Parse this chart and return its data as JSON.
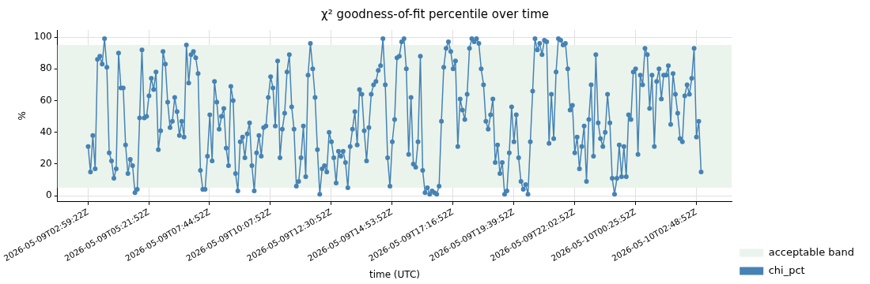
{
  "chart_data": {
    "type": "line",
    "title": "χ² goodness-of-fit percentile over time",
    "xlabel": "time (UTC)",
    "ylabel": "%",
    "xlim": [
      "2026-05-09T01:47:19",
      "2026-05-10T04:12:25"
    ],
    "xticks": [
      {
        "value": "2026-05-09T02:59:22",
        "label": "2026-05-09T02:59:22Z"
      },
      {
        "value": "2026-05-09T05:21:52",
        "label": "2026-05-09T05:21:52Z"
      },
      {
        "value": "2026-05-09T07:44:52",
        "label": "2026-05-09T07:44:52Z"
      },
      {
        "value": "2026-05-09T10:07:52",
        "label": "2026-05-09T10:07:52Z"
      },
      {
        "value": "2026-05-09T12:30:52",
        "label": "2026-05-09T12:30:52Z"
      },
      {
        "value": "2026-05-09T14:53:52",
        "label": "2026-05-09T14:53:52Z"
      },
      {
        "value": "2026-05-09T17:16:52",
        "label": "2026-05-09T17:16:52Z"
      },
      {
        "value": "2026-05-09T19:39:52",
        "label": "2026-05-09T19:39:52Z"
      },
      {
        "value": "2026-05-09T22:02:52",
        "label": "2026-05-09T22:02:52Z"
      },
      {
        "value": "2026-05-10T00:25:52",
        "label": "2026-05-10T00:25:52Z"
      },
      {
        "value": "2026-05-10T02:48:52",
        "label": "2026-05-10T02:48:52Z"
      }
    ],
    "ylim": [
      -3.8,
      104.5
    ],
    "yticks": [
      0,
      20,
      40,
      60,
      80,
      100
    ],
    "grid": true,
    "legend": "bottom right",
    "marker": "circle",
    "line_style": "solid",
    "bands": [
      {
        "axis": "y",
        "from": 5,
        "to": 95,
        "label": "acceptable band",
        "color": "#eaf4ec"
      }
    ],
    "x": [
      "2026-05-09T02:59:22",
      "2026-05-09T03:04:52",
      "2026-05-09T03:10:22",
      "2026-05-09T03:15:52",
      "2026-05-09T03:21:22",
      "2026-05-09T03:26:52",
      "2026-05-09T03:32:22",
      "2026-05-09T03:37:52",
      "2026-05-09T03:43:22",
      "2026-05-09T03:48:52",
      "2026-05-09T03:54:22",
      "2026-05-09T03:59:52",
      "2026-05-09T04:05:22",
      "2026-05-09T04:10:52",
      "2026-05-09T04:16:22",
      "2026-05-09T04:21:52",
      "2026-05-09T04:27:22",
      "2026-05-09T04:32:52",
      "2026-05-09T04:38:22",
      "2026-05-09T04:43:52",
      "2026-05-09T04:49:22",
      "2026-05-09T04:54:52",
      "2026-05-09T05:00:22",
      "2026-05-09T05:05:52",
      "2026-05-09T05:11:22",
      "2026-05-09T05:16:52",
      "2026-05-09T05:22:22",
      "2026-05-09T05:27:52",
      "2026-05-09T05:33:22",
      "2026-05-09T05:38:52",
      "2026-05-09T05:44:22",
      "2026-05-09T05:49:52",
      "2026-05-09T05:55:22",
      "2026-05-09T06:00:52",
      "2026-05-09T06:06:22",
      "2026-05-09T06:11:52",
      "2026-05-09T06:17:22",
      "2026-05-09T06:22:52",
      "2026-05-09T06:28:22",
      "2026-05-09T06:33:52",
      "2026-05-09T06:39:22",
      "2026-05-09T06:44:52",
      "2026-05-09T06:50:22",
      "2026-05-09T06:55:52",
      "2026-05-09T07:01:22",
      "2026-05-09T07:06:52",
      "2026-05-09T07:12:22",
      "2026-05-09T07:17:52",
      "2026-05-09T07:23:22",
      "2026-05-09T07:28:52",
      "2026-05-09T07:34:22",
      "2026-05-09T07:39:52",
      "2026-05-09T07:45:22",
      "2026-05-09T07:50:52",
      "2026-05-09T07:56:22",
      "2026-05-09T08:01:52",
      "2026-05-09T08:07:22",
      "2026-05-09T08:12:52",
      "2026-05-09T08:18:22",
      "2026-05-09T08:23:52",
      "2026-05-09T08:29:22",
      "2026-05-09T08:34:52",
      "2026-05-09T08:40:22",
      "2026-05-09T08:45:52",
      "2026-05-09T08:51:22",
      "2026-05-09T08:56:52",
      "2026-05-09T09:02:22",
      "2026-05-09T09:07:52",
      "2026-05-09T09:13:22",
      "2026-05-09T09:18:52",
      "2026-05-09T09:24:22",
      "2026-05-09T09:29:52",
      "2026-05-09T09:35:22",
      "2026-05-09T09:40:52",
      "2026-05-09T09:46:22",
      "2026-05-09T09:51:52",
      "2026-05-09T09:57:22",
      "2026-05-09T10:02:52",
      "2026-05-09T10:08:22",
      "2026-05-09T10:13:52",
      "2026-05-09T10:19:22",
      "2026-05-09T10:24:52",
      "2026-05-09T10:30:22",
      "2026-05-09T10:35:52",
      "2026-05-09T10:41:22",
      "2026-05-09T10:46:52",
      "2026-05-09T10:52:22",
      "2026-05-09T10:57:52",
      "2026-05-09T11:03:22",
      "2026-05-09T11:08:52",
      "2026-05-09T11:14:22",
      "2026-05-09T11:19:52",
      "2026-05-09T11:25:22",
      "2026-05-09T11:30:52",
      "2026-05-09T11:36:22",
      "2026-05-09T11:41:52",
      "2026-05-09T11:47:22",
      "2026-05-09T11:52:52",
      "2026-05-09T11:58:22",
      "2026-05-09T12:03:52",
      "2026-05-09T12:09:22",
      "2026-05-09T12:14:52",
      "2026-05-09T12:20:22",
      "2026-05-09T12:25:52",
      "2026-05-09T12:31:22",
      "2026-05-09T12:36:52",
      "2026-05-09T12:42:22",
      "2026-05-09T12:47:52",
      "2026-05-09T12:53:22",
      "2026-05-09T12:58:52",
      "2026-05-09T13:04:22",
      "2026-05-09T13:09:52",
      "2026-05-09T13:15:22",
      "2026-05-09T13:20:52",
      "2026-05-09T13:26:22",
      "2026-05-09T13:31:52",
      "2026-05-09T13:37:22",
      "2026-05-09T13:42:52",
      "2026-05-09T13:48:22",
      "2026-05-09T13:53:52",
      "2026-05-09T13:59:22",
      "2026-05-09T14:04:52",
      "2026-05-09T14:10:22",
      "2026-05-09T14:15:52",
      "2026-05-09T14:21:22",
      "2026-05-09T14:26:52",
      "2026-05-09T14:32:22",
      "2026-05-09T14:37:52",
      "2026-05-09T14:43:22",
      "2026-05-09T14:48:52",
      "2026-05-09T14:54:22",
      "2026-05-09T14:59:52",
      "2026-05-09T15:05:22",
      "2026-05-09T15:10:52",
      "2026-05-09T15:16:22",
      "2026-05-09T15:21:52",
      "2026-05-09T15:27:22",
      "2026-05-09T15:32:52",
      "2026-05-09T15:38:22",
      "2026-05-09T15:43:52",
      "2026-05-09T15:49:22",
      "2026-05-09T15:54:52",
      "2026-05-09T16:00:22",
      "2026-05-09T16:05:52",
      "2026-05-09T16:11:22",
      "2026-05-09T16:16:52",
      "2026-05-09T16:22:22",
      "2026-05-09T16:27:52",
      "2026-05-09T16:33:22",
      "2026-05-09T16:38:52",
      "2026-05-09T16:44:22",
      "2026-05-09T16:49:52",
      "2026-05-09T16:55:22",
      "2026-05-09T17:00:52",
      "2026-05-09T17:06:22",
      "2026-05-09T17:11:52",
      "2026-05-09T17:17:22",
      "2026-05-09T17:22:52",
      "2026-05-09T17:28:22",
      "2026-05-09T17:33:52",
      "2026-05-09T17:39:22",
      "2026-05-09T17:44:52",
      "2026-05-09T17:50:22",
      "2026-05-09T17:55:52",
      "2026-05-09T18:01:22",
      "2026-05-09T18:06:52",
      "2026-05-09T18:12:22",
      "2026-05-09T18:17:52",
      "2026-05-09T18:23:22",
      "2026-05-09T18:28:52",
      "2026-05-09T18:34:22",
      "2026-05-09T18:39:52",
      "2026-05-09T18:45:22",
      "2026-05-09T18:50:52",
      "2026-05-09T18:56:22",
      "2026-05-09T19:01:52",
      "2026-05-09T19:07:22",
      "2026-05-09T19:12:52",
      "2026-05-09T19:18:22",
      "2026-05-09T19:23:52",
      "2026-05-09T19:29:22",
      "2026-05-09T19:34:52",
      "2026-05-09T19:40:22",
      "2026-05-09T19:45:52",
      "2026-05-09T19:51:22",
      "2026-05-09T19:56:52",
      "2026-05-09T20:02:22",
      "2026-05-09T20:07:52",
      "2026-05-09T20:13:22",
      "2026-05-09T20:18:52",
      "2026-05-09T20:24:22",
      "2026-05-09T20:29:52",
      "2026-05-09T20:35:22",
      "2026-05-09T20:40:52",
      "2026-05-09T20:46:22",
      "2026-05-09T20:51:52",
      "2026-05-09T20:57:22",
      "2026-05-09T21:02:52",
      "2026-05-09T21:08:22",
      "2026-05-09T21:13:52",
      "2026-05-09T21:19:22",
      "2026-05-09T21:24:52",
      "2026-05-09T21:30:22",
      "2026-05-09T21:35:52",
      "2026-05-09T21:41:22",
      "2026-05-09T21:46:52",
      "2026-05-09T21:52:22",
      "2026-05-09T21:57:52",
      "2026-05-09T22:03:22",
      "2026-05-09T22:08:52",
      "2026-05-09T22:14:22",
      "2026-05-09T22:19:52",
      "2026-05-09T22:25:22",
      "2026-05-09T22:30:52",
      "2026-05-09T22:36:22",
      "2026-05-09T22:41:52",
      "2026-05-09T22:47:22",
      "2026-05-09T22:52:52",
      "2026-05-09T22:58:22",
      "2026-05-09T23:03:52",
      "2026-05-09T23:09:22",
      "2026-05-09T23:14:52",
      "2026-05-09T23:20:22",
      "2026-05-09T23:25:52",
      "2026-05-09T23:31:22",
      "2026-05-09T23:36:52",
      "2026-05-09T23:42:22",
      "2026-05-09T23:47:52",
      "2026-05-09T23:53:22",
      "2026-05-09T23:58:52",
      "2026-05-10T00:04:22",
      "2026-05-10T00:09:52",
      "2026-05-10T00:15:22",
      "2026-05-10T00:20:52",
      "2026-05-10T00:26:22",
      "2026-05-10T00:31:52",
      "2026-05-10T00:37:22",
      "2026-05-10T00:42:52",
      "2026-05-10T00:48:22",
      "2026-05-10T00:53:52",
      "2026-05-10T00:59:22",
      "2026-05-10T01:04:52",
      "2026-05-10T01:10:22",
      "2026-05-10T01:15:52",
      "2026-05-10T01:21:22",
      "2026-05-10T01:26:52",
      "2026-05-10T01:32:22",
      "2026-05-10T01:37:52",
      "2026-05-10T01:43:22",
      "2026-05-10T01:48:52",
      "2026-05-10T01:54:22",
      "2026-05-10T01:59:52",
      "2026-05-10T02:05:22",
      "2026-05-10T02:10:52",
      "2026-05-10T02:16:22",
      "2026-05-10T02:21:52",
      "2026-05-10T02:27:22",
      "2026-05-10T02:32:52",
      "2026-05-10T02:38:22",
      "2026-05-10T02:43:52",
      "2026-05-10T02:49:22",
      "2026-05-10T02:54:52",
      "2026-05-10T03:00:22"
    ],
    "series": [
      {
        "name": "chi_pct",
        "color": "#4682b4",
        "values": [
          31,
          15,
          38,
          17,
          86,
          88,
          83,
          99,
          81,
          27,
          22,
          11,
          17,
          90,
          68,
          68,
          32,
          14,
          23,
          19,
          2,
          4,
          49,
          92,
          49,
          50,
          63,
          74,
          67,
          78,
          29,
          41,
          91,
          83,
          59,
          43,
          47,
          62,
          53,
          38,
          47,
          37,
          95,
          71,
          89,
          91,
          87,
          77,
          16,
          4,
          4,
          25,
          51,
          22,
          72,
          59,
          42,
          50,
          55,
          30,
          19,
          69,
          60,
          14,
          3,
          34,
          37,
          24,
          39,
          46,
          19,
          3,
          27,
          38,
          25,
          43,
          44,
          62,
          75,
          68,
          44,
          85,
          24,
          42,
          52,
          78,
          89,
          56,
          42,
          6,
          9,
          24,
          44,
          12,
          76,
          96,
          80,
          62,
          29,
          1,
          17,
          19,
          15,
          40,
          34,
          24,
          8,
          28,
          25,
          28,
          21,
          5,
          31,
          42,
          53,
          32,
          67,
          64,
          41,
          22,
          43,
          64,
          70,
          72,
          79,
          82,
          99,
          70,
          24,
          6,
          34,
          48,
          87,
          88,
          97,
          99,
          80,
          26,
          62,
          20,
          18,
          34,
          88,
          16,
          2,
          5,
          1,
          3,
          2,
          1,
          6,
          47,
          81,
          93,
          97,
          91,
          80,
          85,
          31,
          61,
          54,
          48,
          64,
          93,
          99,
          97,
          99,
          96,
          80,
          70,
          47,
          42,
          51,
          61,
          21,
          32,
          14,
          21,
          1,
          3,
          27,
          56,
          34,
          51,
          24,
          9,
          4,
          7,
          1,
          34,
          66,
          99,
          92,
          96,
          89,
          98,
          97,
          33,
          64,
          36,
          78,
          99,
          98,
          95,
          96,
          80,
          54,
          57,
          27,
          37,
          17,
          31,
          44,
          9,
          48,
          70,
          25,
          89,
          46,
          36,
          31,
          40,
          64,
          46,
          11,
          1,
          11,
          32,
          12,
          31,
          12,
          51,
          48,
          78,
          80,
          26,
          76,
          70,
          93,
          89,
          55,
          76,
          31,
          72,
          80,
          61,
          76,
          76,
          82,
          45,
          77,
          64,
          52,
          36,
          34,
          63,
          70,
          64,
          74,
          93,
          37,
          47,
          15
        ]
      }
    ]
  }
}
